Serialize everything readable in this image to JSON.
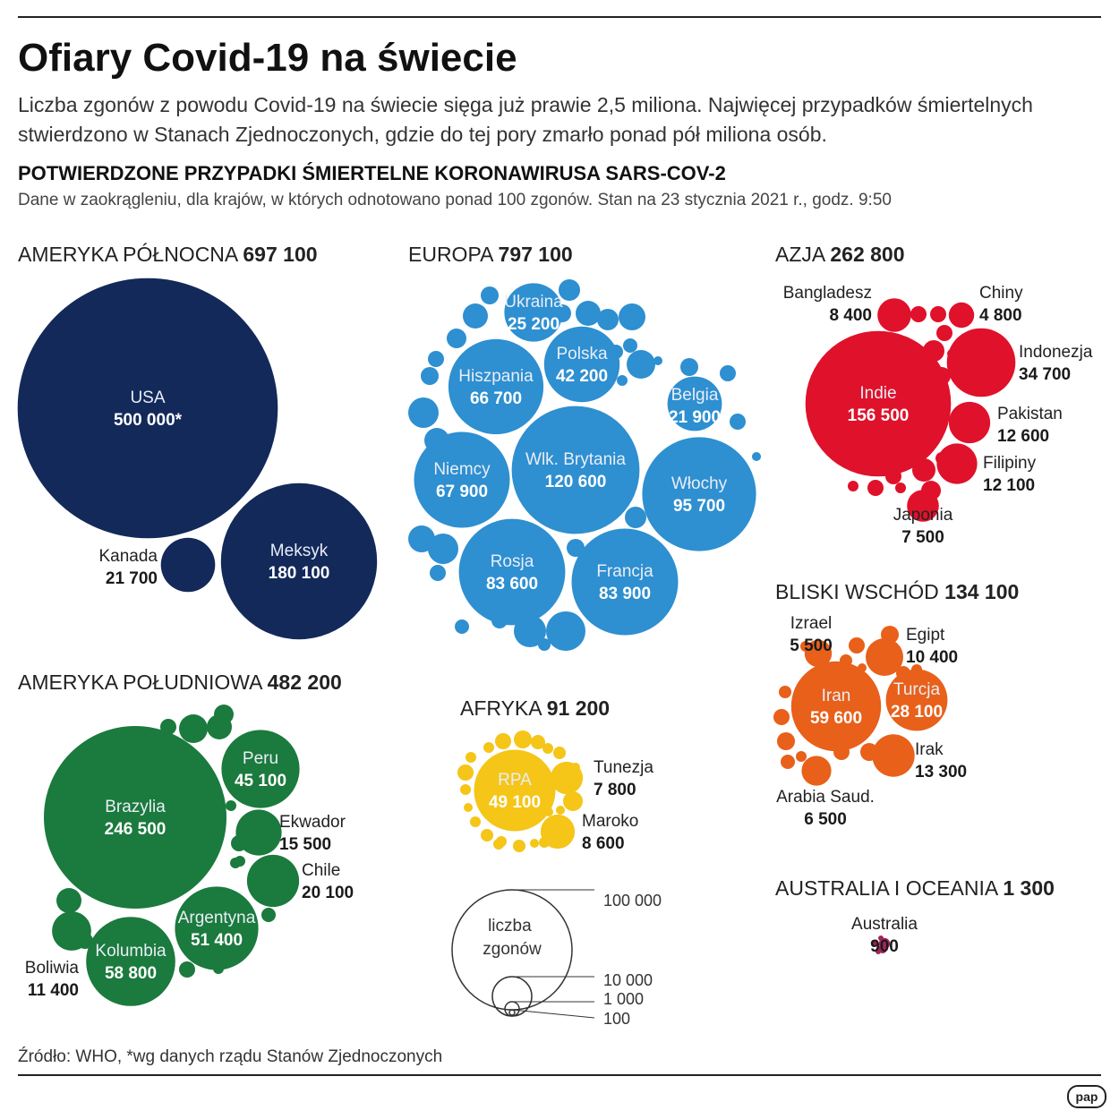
{
  "header": {
    "title": "Ofiary Covid-19 na świecie",
    "lede": "Liczba zgonów z powodu Covid-19 na świecie sięga już prawie 2,5 miliona. Najwięcej przypadków śmiertelnych stwierdzono w Stanach Zjednoczonych, gdzie do tej pory zmarło ponad pół miliona osób.",
    "subhead": "POTWIERDZONE PRZYPADKI ŚMIERTELNE KORONAWIRUSA SARS-COV-2",
    "note": "Dane w zaokrągleniu, dla krajów, w których odnotowano ponad 100 zgonów. Stan na 23 stycznia 2021 r., godz. 9:50"
  },
  "footer": {
    "source": "Źródło: WHO, *wg danych rządu Stanów Zjednoczonych",
    "logo": "pap"
  },
  "colors": {
    "north_america": "#13295a",
    "europe": "#2e8fd1",
    "asia": "#e0112b",
    "middle_east": "#e8601a",
    "south_america": "#1b7a3d",
    "africa": "#f5c518",
    "oceania": "#a4245a"
  },
  "chart_data": {
    "type": "bubble",
    "legend": {
      "title": "liczba zgonów",
      "scale": [
        "100 000",
        "10 000",
        "1 000",
        "100"
      ]
    },
    "regions": [
      {
        "key": "north_america",
        "name": "AMERYKA PÓŁNOCNA",
        "total": "697 100",
        "countries": [
          {
            "name": "USA",
            "value": "500 000*"
          },
          {
            "name": "Meksyk",
            "value": "180 100"
          },
          {
            "name": "Kanada",
            "value": "21 700"
          }
        ]
      },
      {
        "key": "europe",
        "name": "EUROPA",
        "total": "797 100",
        "countries": [
          {
            "name": "Wlk. Brytania",
            "value": "120 600"
          },
          {
            "name": "Włochy",
            "value": "95 700"
          },
          {
            "name": "Francja",
            "value": "83 900"
          },
          {
            "name": "Rosja",
            "value": "83 600"
          },
          {
            "name": "Niemcy",
            "value": "67 900"
          },
          {
            "name": "Hiszpania",
            "value": "66 700"
          },
          {
            "name": "Polska",
            "value": "42 200"
          },
          {
            "name": "Ukraina",
            "value": "25 200"
          },
          {
            "name": "Belgia",
            "value": "21 900"
          }
        ]
      },
      {
        "key": "asia",
        "name": "AZJA",
        "total": "262 800",
        "countries": [
          {
            "name": "Indie",
            "value": "156 500"
          },
          {
            "name": "Indonezja",
            "value": "34 700"
          },
          {
            "name": "Pakistan",
            "value": "12 600"
          },
          {
            "name": "Filipiny",
            "value": "12 100"
          },
          {
            "name": "Bangladesz",
            "value": "8 400"
          },
          {
            "name": "Japonia",
            "value": "7 500"
          },
          {
            "name": "Chiny",
            "value": "4 800"
          }
        ]
      },
      {
        "key": "middle_east",
        "name": "BLISKI WSCHÓD",
        "total": "134 100",
        "countries": [
          {
            "name": "Iran",
            "value": "59 600"
          },
          {
            "name": "Turcja",
            "value": "28 100"
          },
          {
            "name": "Irak",
            "value": "13 300"
          },
          {
            "name": "Egipt",
            "value": "10 400"
          },
          {
            "name": "Arabia Saud.",
            "value": "6 500"
          },
          {
            "name": "Izrael",
            "value": "5 500"
          }
        ]
      },
      {
        "key": "south_america",
        "name": "AMERYKA POŁUDNIOWA",
        "total": "482 200",
        "countries": [
          {
            "name": "Brazylia",
            "value": "246 500"
          },
          {
            "name": "Kolumbia",
            "value": "58 800"
          },
          {
            "name": "Argentyna",
            "value": "51 400"
          },
          {
            "name": "Peru",
            "value": "45 100"
          },
          {
            "name": "Chile",
            "value": "20 100"
          },
          {
            "name": "Ekwador",
            "value": "15 500"
          },
          {
            "name": "Boliwia",
            "value": "11 400"
          }
        ]
      },
      {
        "key": "africa",
        "name": "AFRYKA",
        "total": "91 200",
        "countries": [
          {
            "name": "RPA",
            "value": "49 100"
          },
          {
            "name": "Maroko",
            "value": "8 600"
          },
          {
            "name": "Tunezja",
            "value": "7 800"
          }
        ]
      },
      {
        "key": "oceania",
        "name": "AUSTRALIA I OCEANIA",
        "total": "1 300",
        "countries": [
          {
            "name": "Australia",
            "value": "900"
          }
        ]
      }
    ]
  }
}
